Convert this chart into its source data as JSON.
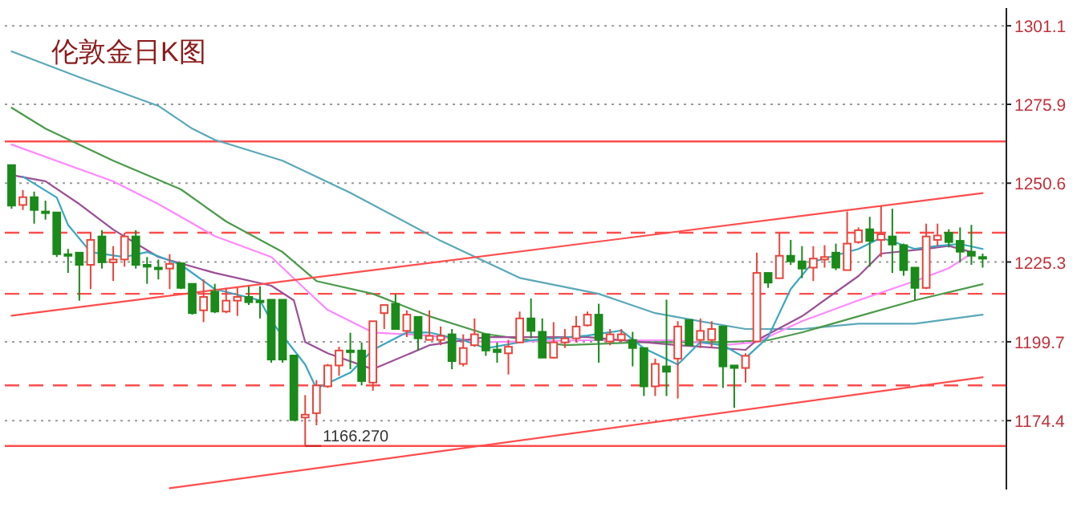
{
  "chart_data": {
    "type": "candlestick",
    "title": "伦敦金日K图",
    "categories": [
      null,
      null,
      null,
      null,
      null,
      null,
      null,
      null,
      null,
      null,
      null,
      null,
      null,
      null,
      null,
      null,
      null,
      null,
      null,
      null,
      null,
      null,
      null,
      null,
      null,
      null,
      null,
      null,
      null,
      null,
      null,
      null,
      null,
      null,
      null,
      null,
      null,
      null,
      null,
      null,
      null,
      null,
      null,
      null,
      null,
      null,
      null,
      null,
      null,
      null,
      null,
      null,
      null,
      null,
      null,
      null,
      null,
      null,
      null,
      null,
      null,
      null,
      null,
      null,
      null,
      null,
      null,
      null,
      null,
      null,
      null,
      null,
      null,
      null,
      null,
      null,
      null,
      null,
      null,
      null,
      null,
      null,
      null,
      null,
      null,
      null,
      null
    ],
    "ohlc": [
      [
        1256.4,
        1256.4,
        1242.4,
        1243.4
      ],
      [
        1243.6,
        1248.4,
        1242.0,
        1246.1
      ],
      [
        1246.1,
        1247.9,
        1237.6,
        1242.0
      ],
      [
        1241.5,
        1245.0,
        1238.9,
        1241.0
      ],
      [
        1241.2,
        1241.2,
        1226.9,
        1227.8
      ],
      [
        1227.8,
        1229.5,
        1221.8,
        1227.5
      ],
      [
        1228.3,
        1228.3,
        1212.9,
        1224.4
      ],
      [
        1224.4,
        1234.7,
        1216.6,
        1232.4
      ],
      [
        1233.5,
        1235.5,
        1223.2,
        1225.2
      ],
      [
        1225.2,
        1230.4,
        1219.2,
        1226.1
      ],
      [
        1226.1,
        1234.7,
        1223.8,
        1233.5
      ],
      [
        1233.5,
        1235.5,
        1223.2,
        1224.4
      ],
      [
        1224.4,
        1226.9,
        1218.3,
        1223.8
      ],
      [
        1223.5,
        1226.1,
        1219.7,
        1223.2
      ],
      [
        1223.2,
        1227.8,
        1216.6,
        1224.7
      ],
      [
        1224.9,
        1224.9,
        1216.6,
        1217.0
      ],
      [
        1218.3,
        1218.3,
        1208.4,
        1208.9
      ],
      [
        1209.8,
        1219.7,
        1206.0,
        1214.1
      ],
      [
        1215.8,
        1218.3,
        1208.9,
        1209.4
      ],
      [
        1209.4,
        1217.0,
        1208.9,
        1212.9
      ],
      [
        1212.9,
        1217.0,
        1208.0,
        1214.1
      ],
      [
        1214.1,
        1217.5,
        1211.5,
        1212.4
      ],
      [
        1212.9,
        1217.5,
        1207.2,
        1212.7
      ],
      [
        1213.2,
        1213.2,
        1193.0,
        1194.0
      ],
      [
        1213.2,
        1213.2,
        1193.0,
        1194.0
      ],
      [
        1195.3,
        1195.3,
        1174.6,
        1174.6
      ],
      [
        1175.4,
        1182.6,
        1166.27,
        1176.3
      ],
      [
        1176.8,
        1187.4,
        1172.9,
        1185.7
      ],
      [
        1185.4,
        1192.6,
        1184.9,
        1192.1
      ],
      [
        1192.1,
        1198.1,
        1188.8,
        1196.9
      ],
      [
        1196.9,
        1202.6,
        1190.9,
        1196.7
      ],
      [
        1196.9,
        1199.5,
        1185.7,
        1187.1
      ],
      [
        1186.6,
        1206.3,
        1184.0,
        1206.3
      ],
      [
        1208.9,
        1211.5,
        1203.8,
        1211.5
      ],
      [
        1211.9,
        1215.0,
        1203.8,
        1203.8
      ],
      [
        1203.2,
        1209.8,
        1201.2,
        1208.4
      ],
      [
        1207.7,
        1207.7,
        1196.9,
        1200.8
      ],
      [
        1200.3,
        1209.8,
        1200.3,
        1201.6
      ],
      [
        1200.3,
        1204.6,
        1198.6,
        1201.6
      ],
      [
        1202.1,
        1203.8,
        1190.9,
        1193.5
      ],
      [
        1192.6,
        1202.1,
        1191.8,
        1197.7
      ],
      [
        1198.6,
        1207.2,
        1198.1,
        1202.1
      ],
      [
        1202.1,
        1202.1,
        1195.2,
        1196.9
      ],
      [
        1197.2,
        1199.5,
        1193.0,
        1196.4
      ],
      [
        1196.0,
        1200.3,
        1189.2,
        1198.1
      ],
      [
        1199.5,
        1209.4,
        1199.5,
        1207.2
      ],
      [
        1207.2,
        1213.6,
        1200.8,
        1203.2
      ],
      [
        1202.9,
        1207.2,
        1194.6,
        1194.6
      ],
      [
        1194.6,
        1206.0,
        1194.3,
        1199.5
      ],
      [
        1199.5,
        1203.8,
        1197.7,
        1200.8
      ],
      [
        1200.8,
        1208.0,
        1199.5,
        1204.6
      ],
      [
        1205.0,
        1209.4,
        1204.6,
        1208.4
      ],
      [
        1208.4,
        1211.9,
        1193.0,
        1200.3
      ],
      [
        1199.8,
        1203.8,
        1198.6,
        1202.1
      ],
      [
        1200.3,
        1203.8,
        1199.6,
        1202.1
      ],
      [
        1200.3,
        1202.9,
        1191.8,
        1197.7
      ],
      [
        1197.7,
        1197.7,
        1182.3,
        1185.4
      ],
      [
        1185.4,
        1194.3,
        1182.3,
        1192.6
      ],
      [
        1191.8,
        1213.2,
        1182.3,
        1190.1
      ],
      [
        1194.3,
        1206.3,
        1181.5,
        1204.6
      ],
      [
        1206.7,
        1206.7,
        1198.6,
        1198.6
      ],
      [
        1200.3,
        1207.2,
        1197.7,
        1203.2
      ],
      [
        1200.3,
        1206.3,
        1197.7,
        1203.8
      ],
      [
        1204.6,
        1204.6,
        1184.9,
        1191.8
      ],
      [
        1192.1,
        1192.1,
        1178.5,
        1191.3
      ],
      [
        1191.3,
        1196.0,
        1186.6,
        1195.2
      ],
      [
        1199.8,
        1228.3,
        1199.8,
        1221.8
      ],
      [
        1221.8,
        1221.8,
        1217.0,
        1218.7
      ],
      [
        1220.1,
        1234.7,
        1220.1,
        1227.3
      ],
      [
        1227.3,
        1232.4,
        1224.4,
        1225.5
      ],
      [
        1225.5,
        1230.4,
        1220.1,
        1223.2
      ],
      [
        1223.5,
        1230.4,
        1219.2,
        1226.4
      ],
      [
        1226.1,
        1230.7,
        1223.5,
        1226.9
      ],
      [
        1228.3,
        1231.2,
        1222.7,
        1223.5
      ],
      [
        1222.7,
        1241.5,
        1222.7,
        1231.2
      ],
      [
        1231.7,
        1236.4,
        1231.2,
        1235.5
      ],
      [
        1235.8,
        1239.8,
        1223.8,
        1232.1
      ],
      [
        1232.4,
        1243.3,
        1226.9,
        1234.2
      ],
      [
        1233.5,
        1242.4,
        1221.8,
        1230.9
      ],
      [
        1230.7,
        1231.2,
        1220.9,
        1222.7
      ],
      [
        1223.5,
        1223.5,
        1212.9,
        1217.0
      ],
      [
        1217.0,
        1237.6,
        1216.6,
        1233.5
      ],
      [
        1232.4,
        1237.6,
        1230.4,
        1233.8
      ],
      [
        1234.7,
        1235.8,
        1230.0,
        1231.7
      ],
      [
        1232.1,
        1236.4,
        1225.2,
        1228.6
      ],
      [
        1228.6,
        1237.2,
        1224.4,
        1227.3
      ],
      [
        1226.9,
        1228.0,
        1223.5,
        1226.4
      ]
    ],
    "colors": [
      "#1a8a1a",
      "#e8453c",
      "#1a8a1a",
      "#1a8a1a",
      "#1a8a1a",
      "#1a8a1a",
      "#1a8a1a",
      "#e8453c",
      "#1a8a1a",
      "#e8453c",
      "#e8453c",
      "#1a8a1a",
      "#1a8a1a",
      "#1a8a1a",
      "#e8453c",
      "#1a8a1a",
      "#1a8a1a",
      "#e8453c",
      "#1a8a1a",
      "#e8453c",
      "#e8453c",
      "#1a8a1a",
      "#1a8a1a",
      "#1a8a1a",
      "#1a8a1a",
      "#1a8a1a",
      "#e8453c",
      "#e8453c",
      "#e8453c",
      "#e8453c",
      "#1a8a1a",
      "#1a8a1a",
      "#e8453c",
      "#e8453c",
      "#1a8a1a",
      "#e8453c",
      "#1a8a1a",
      "#e8453c",
      "#e8453c",
      "#1a8a1a",
      "#e8453c",
      "#e8453c",
      "#1a8a1a",
      "#1a8a1a",
      "#e8453c",
      "#e8453c",
      "#1a8a1a",
      "#1a8a1a",
      "#e8453c",
      "#e8453c",
      "#e8453c",
      "#e8453c",
      "#1a8a1a",
      "#e8453c",
      "#e8453c",
      "#1a8a1a",
      "#1a8a1a",
      "#e8453c",
      "#1a8a1a",
      "#e8453c",
      "#1a8a1a",
      "#e8453c",
      "#e8453c",
      "#1a8a1a",
      "#1a8a1a",
      "#e8453c",
      "#e8453c",
      "#1a8a1a",
      "#e8453c",
      "#1a8a1a",
      "#1a8a1a",
      "#e8453c",
      "#e8453c",
      "#1a8a1a",
      "#e8453c",
      "#e8453c",
      "#1a8a1a",
      "#e8453c",
      "#1a8a1a",
      "#1a8a1a",
      "#1a8a1a",
      "#e8453c",
      "#e8453c",
      "#1a8a1a",
      "#1a8a1a",
      "#1a8a1a",
      "#1a8a1a"
    ],
    "series": [
      {
        "type": "line",
        "color": "#5aa8b8",
        "values": [
          1292.9,
          null,
          null,
          null,
          null,
          null,
          1284.6,
          null,
          null,
          null,
          null,
          null,
          null,
          1275.4,
          null,
          null,
          1268.1,
          null,
          1264.5,
          null,
          null,
          null,
          null,
          null,
          1257.8,
          null,
          null,
          null,
          null,
          null,
          1247.5,
          null,
          null,
          null,
          null,
          null,
          null,
          null,
          1232.1,
          null,
          null,
          null,
          null,
          null,
          null,
          1220.2,
          null,
          null,
          null,
          null,
          null,
          null,
          1215.1,
          null,
          null,
          null,
          null,
          1208.9,
          null,
          null,
          null,
          1206.3,
          null,
          null,
          null,
          1203.8,
          null,
          null,
          null,
          null,
          1203.8,
          null,
          null,
          null,
          null,
          1205.5,
          null,
          null,
          null,
          null,
          1205.5,
          null,
          null,
          null,
          null,
          null,
          1208.4
        ]
      },
      {
        "type": "line",
        "color": "#4c9a4c",
        "values": [
          1274.8,
          null,
          null,
          1268.1,
          null,
          null,
          null,
          null,
          null,
          1257.8,
          null,
          null,
          null,
          null,
          null,
          1248.6,
          null,
          null,
          null,
          1238.3,
          null,
          null,
          null,
          null,
          1228.5,
          null,
          null,
          1219.2,
          null,
          null,
          null,
          null,
          1215.1,
          null,
          null,
          null,
          null,
          1207.9,
          null,
          null,
          null,
          null,
          1202.2,
          null,
          null,
          null,
          null,
          null,
          null,
          1198.6,
          null,
          null,
          null,
          null,
          null,
          null,
          1199.6,
          null,
          null,
          null,
          null,
          null,
          null,
          1199.6,
          null,
          null,
          null,
          1200.2,
          null,
          null,
          1202.7,
          null,
          null,
          null,
          null,
          1207.9,
          null,
          null,
          null,
          null,
          1213.0,
          null,
          null,
          null,
          null,
          null,
          1218.2
        ]
      },
      {
        "type": "line",
        "color": "#ff88ff",
        "values": [
          1263.0,
          null,
          null,
          null,
          null,
          null,
          null,
          null,
          null,
          1251.2,
          null,
          null,
          null,
          1243.9,
          null,
          null,
          null,
          null,
          1233.6,
          null,
          null,
          null,
          null,
          1226.9,
          null,
          null,
          1216.6,
          null,
          1209.9,
          null,
          null,
          null,
          1202.7,
          null,
          null,
          null,
          null,
          1201.7,
          null,
          null,
          null,
          null,
          1199.6,
          null,
          null,
          null,
          null,
          null,
          null,
          null,
          null,
          1200.2,
          null,
          null,
          null,
          null,
          null,
          null,
          null,
          1200.2,
          null,
          null,
          null,
          1198.6,
          null,
          null,
          1199.6,
          null,
          null,
          null,
          1206.3,
          null,
          null,
          null,
          null,
          1213.0,
          null,
          null,
          null,
          null,
          1219.2,
          null,
          null,
          1223.3,
          null,
          1228.0,
          null
        ]
      },
      {
        "type": "line",
        "color": "#9b4f96",
        "values": [
          1253.2,
          null,
          null,
          1251.2,
          null,
          null,
          1243.9,
          null,
          null,
          1235.7,
          null,
          null,
          null,
          1226.9,
          null,
          null,
          null,
          null,
          1221.8,
          null,
          null,
          null,
          null,
          1217.7,
          null,
          1213.0,
          1199.6,
          null,
          1196.0,
          null,
          null,
          null,
          1190.9,
          null,
          null,
          null,
          null,
          1198.6,
          null,
          null,
          null,
          null,
          1201.2,
          null,
          null,
          null,
          null,
          null,
          null,
          null,
          null,
          1201.2,
          null,
          null,
          null,
          null,
          null,
          null,
          null,
          1198.6,
          null,
          null,
          null,
          null,
          null,
          1197.1,
          1200.2,
          null,
          null,
          null,
          1207.9,
          null,
          null,
          null,
          null,
          1220.8,
          null,
          1228.0,
          null,
          null,
          null,
          1229.5,
          null,
          1230.5,
          null,
          1228.5,
          null
        ]
      },
      {
        "type": "line",
        "color": "#3aa7c0",
        "values": [
          null,
          1252.7,
          null,
          null,
          1246.0,
          1237.2,
          null,
          1228.5,
          null,
          null,
          1226.9,
          null,
          1228.5,
          null,
          null,
          1224.4,
          null,
          null,
          1216.6,
          null,
          null,
          null,
          1213.0,
          1206.3,
          null,
          null,
          1192.4,
          1184.7,
          null,
          null,
          1189.8,
          null,
          1197.1,
          null,
          null,
          1202.7,
          null,
          1202.7,
          null,
          null,
          1200.2,
          null,
          1197.6,
          null,
          null,
          null,
          1200.2,
          null,
          null,
          null,
          null,
          1201.7,
          null,
          null,
          1203.3,
          null,
          1197.6,
          null,
          null,
          1192.4,
          null,
          1199.6,
          null,
          1198.6,
          null,
          1194.5,
          null,
          1201.2,
          null,
          1216.6,
          null,
          1225.4,
          null,
          null,
          null,
          1229.5,
          null,
          1233.1,
          null,
          null,
          1229.5,
          null,
          1230.5,
          null,
          1231.1,
          null,
          1229.5
        ]
      },
      {
        "type": "line",
        "color": "#ff4d4d",
        "values": [
          1208.1,
          null,
          null,
          null,
          null,
          null,
          null,
          null,
          null,
          null,
          null,
          null,
          null,
          null,
          null,
          null,
          null,
          null,
          null,
          null,
          null,
          null,
          null,
          null,
          null,
          null,
          null,
          null,
          null,
          null,
          null,
          null,
          null,
          null,
          null,
          null,
          null,
          null,
          null,
          null,
          null,
          null,
          null,
          null,
          null,
          null,
          null,
          null,
          null,
          null,
          null,
          null,
          null,
          null,
          null,
          null,
          null,
          null,
          null,
          null,
          null,
          null,
          null,
          null,
          null,
          null,
          null,
          null,
          null,
          null,
          null,
          null,
          null,
          null,
          null,
          null,
          null,
          null,
          null,
          null,
          null,
          null,
          null,
          null,
          null,
          null,
          1247.4
        ]
      },
      {
        "type": "line",
        "color": "#ff4d4d",
        "values": [
          null,
          null,
          null,
          null,
          null,
          null,
          null,
          null,
          null,
          null,
          null,
          null,
          null,
          null,
          1152.7,
          null,
          null,
          null,
          null,
          null,
          null,
          null,
          null,
          null,
          null,
          null,
          null,
          null,
          null,
          null,
          null,
          null,
          null,
          null,
          null,
          null,
          null,
          null,
          null,
          null,
          null,
          null,
          null,
          null,
          null,
          null,
          null,
          null,
          null,
          null,
          null,
          null,
          null,
          null,
          null,
          null,
          null,
          null,
          null,
          null,
          null,
          null,
          null,
          null,
          null,
          null,
          null,
          null,
          null,
          null,
          null,
          null,
          null,
          null,
          null,
          null,
          null,
          null,
          null,
          null,
          null,
          null,
          null,
          null,
          null,
          null,
          1188.3
        ]
      }
    ],
    "ylim": [
      1152.3,
      1306.8
    ],
    "yticks": [
      1301.1,
      1275.9,
      1250.6,
      1225.3,
      1199.7,
      1174.4
    ],
    "grid": "y",
    "tick_labels": "y",
    "ref_lines": [
      {
        "axis": "y",
        "value": 1264.0,
        "color": "#ff4d4d",
        "line_style": "solid"
      },
      {
        "axis": "y",
        "value": 1234.7,
        "color": "#ff4d4d",
        "line_style": "dashed"
      },
      {
        "axis": "y",
        "value": 1215.1,
        "color": "#ff4d4d",
        "line_style": "dashed"
      },
      {
        "axis": "y",
        "value": 1185.7,
        "color": "#ff4d4d",
        "line_style": "dashed"
      },
      {
        "axis": "y",
        "value": 1166.27,
        "color": "#ff4d4d",
        "line_style": "solid"
      }
    ],
    "annotations": [
      {
        "text": "1166.270",
        "y": 1166.27
      }
    ]
  }
}
